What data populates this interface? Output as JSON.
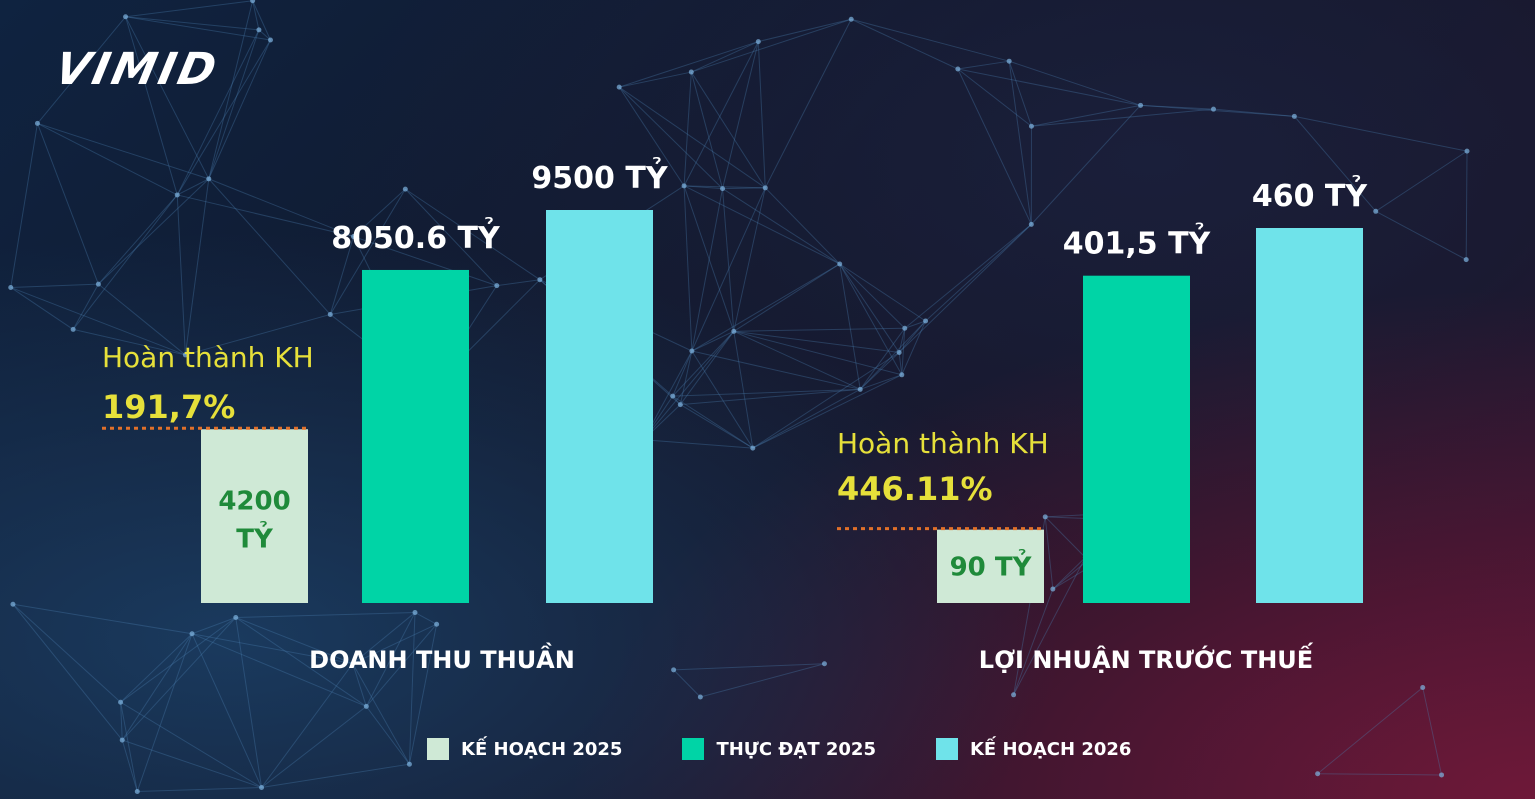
{
  "logo": {
    "text": "VIMID"
  },
  "colors": {
    "plan_2025": "#cfe9d6",
    "actual_2025": "#00d4a6",
    "plan_2026": "#6fe3ea",
    "inner_label": "#1f8a3a",
    "highlight": "#e6e03a",
    "dotted_line": "#e0702a"
  },
  "chart_data": [
    {
      "type": "bar",
      "category": "DOANH THU THUẦN",
      "unit": "TỶ",
      "series": [
        {
          "name": "KẾ HOẠCH 2025",
          "value": 4200,
          "label": "4200 TỶ"
        },
        {
          "name": "THỰC ĐẠT 2025",
          "value": 8050.6,
          "label": "8050.6 TỶ"
        },
        {
          "name": "KẾ HOẠCH 2026",
          "value": 9500,
          "label": "9500 TỶ"
        }
      ],
      "annotation": {
        "text": "Hoàn thành KH",
        "value": "191,7%"
      }
    },
    {
      "type": "bar",
      "category": "LỢI NHUẬN TRƯỚC THUẾ",
      "unit": "TỶ",
      "series": [
        {
          "name": "KẾ HOẠCH 2025",
          "value": 90,
          "label": "90 TỶ"
        },
        {
          "name": "THỰC ĐẠT 2025",
          "value": 401.5,
          "label": "401,5 TỶ"
        },
        {
          "name": "KẾ HOẠCH 2026",
          "value": 460,
          "label": "460 TỶ"
        }
      ],
      "annotation": {
        "text": "Hoàn thành KH",
        "value": "446.11%"
      }
    }
  ],
  "legend": [
    {
      "label": "KẾ HOẠCH 2025",
      "color": "#cfe9d6"
    },
    {
      "label": "THỰC ĐẠT 2025",
      "color": "#00d4a6"
    },
    {
      "label": "KẾ HOẠCH 2026",
      "color": "#6fe3ea"
    }
  ]
}
